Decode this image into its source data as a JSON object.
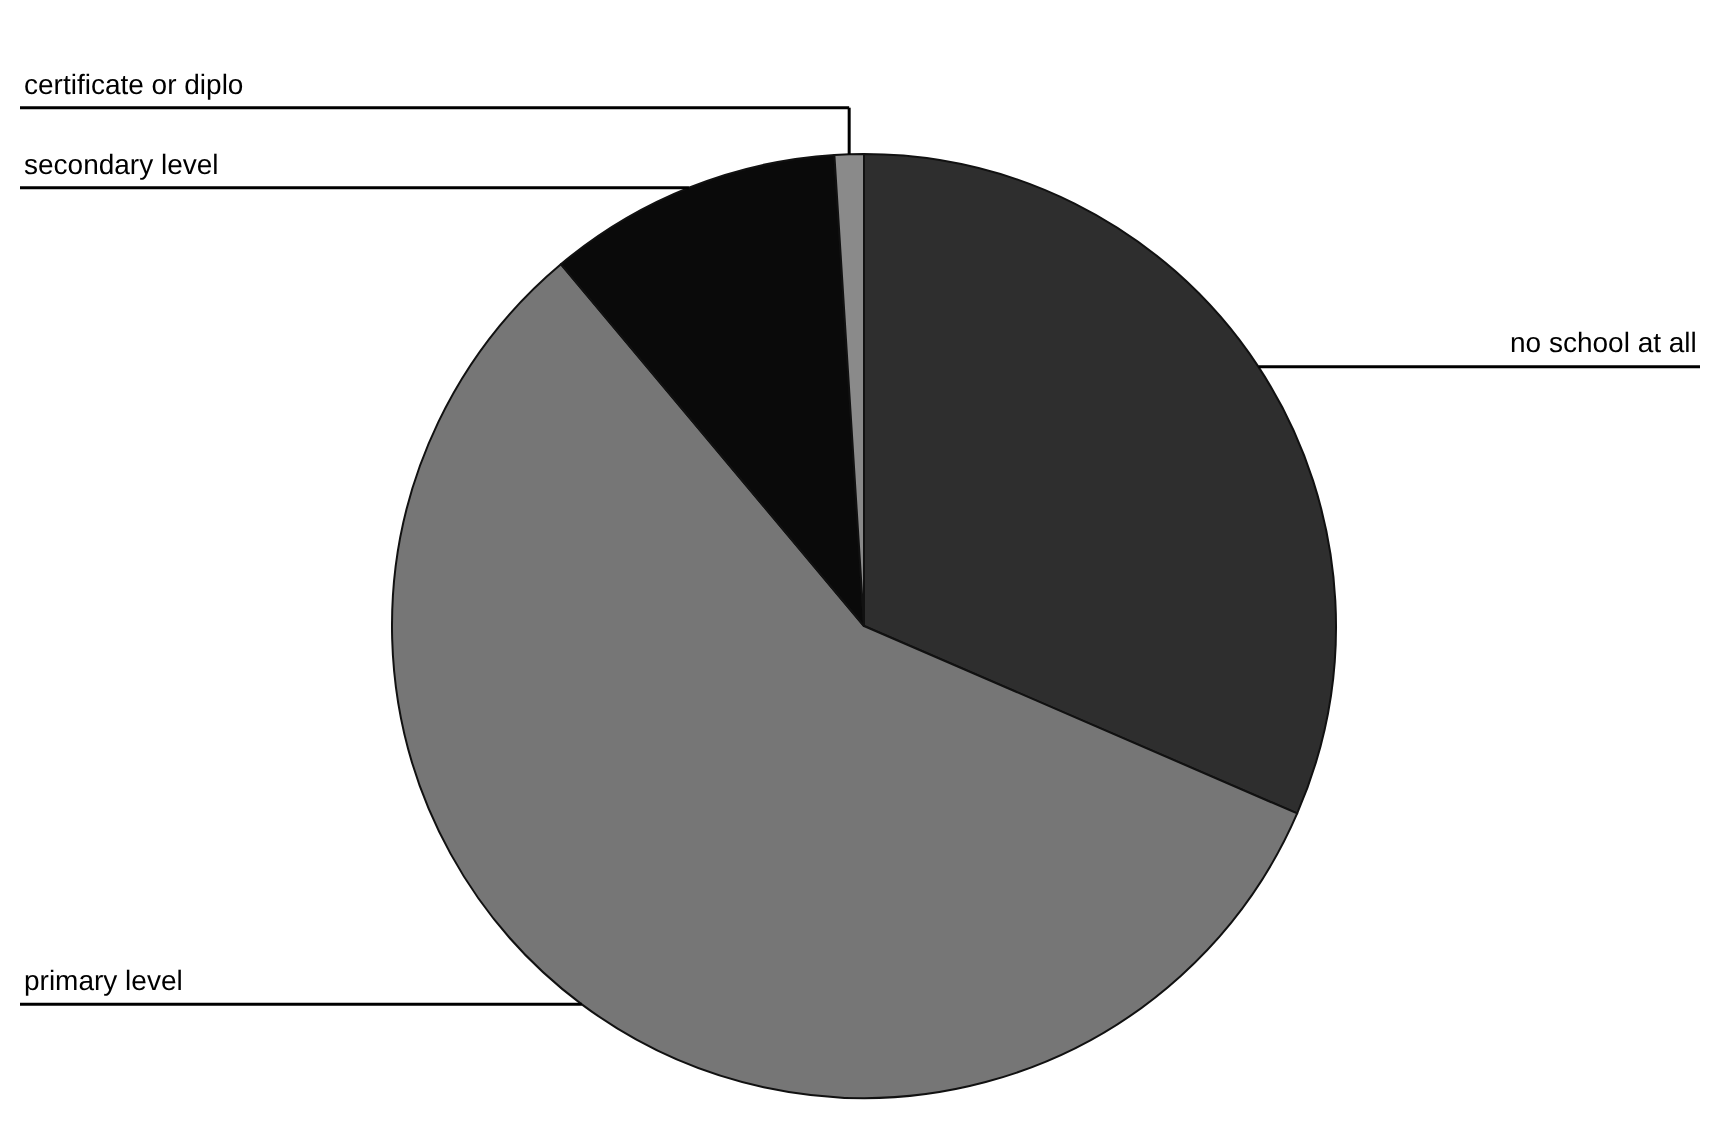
{
  "chart_data": {
    "type": "pie",
    "categories": [
      "no school at all",
      "primary level",
      "secondary level",
      "certificate or diplo"
    ],
    "values": [
      31.5,
      57.4,
      10.1,
      1.0
    ],
    "colors": [
      "#2e2e2e",
      "#767676",
      "#0a0a0a",
      "#8a8a8a"
    ],
    "legend": false
  }
}
